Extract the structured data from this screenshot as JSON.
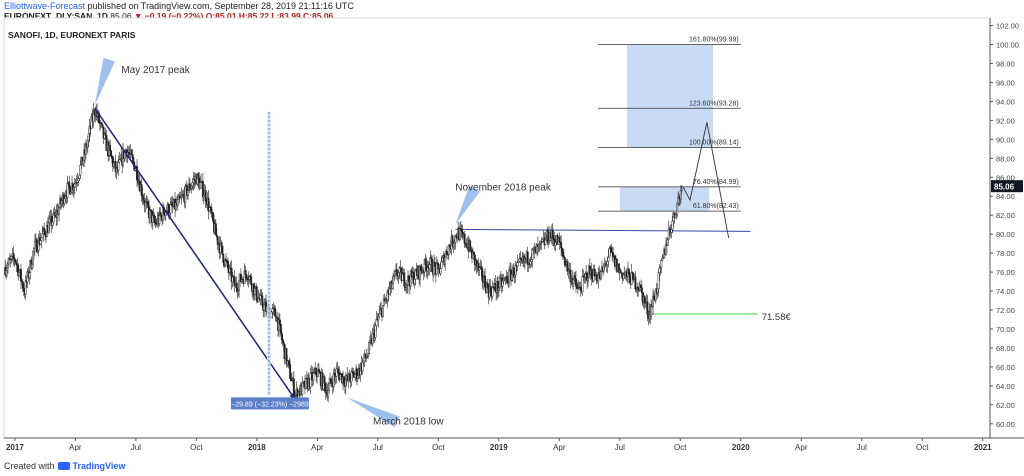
{
  "header": {
    "author": "Elliottwave-Forecast",
    "published": "published on TradingView.com, September 28, 2019 21:11:16 UTC",
    "symbol": "EURONEXT_DLY:SAN, 1D",
    "last": "85.06",
    "change": "▼ −0.19 (−0.22%)",
    "ohlc": "O:85.01 H:85.22 L:83.99 C:85.06"
  },
  "chart_data": {
    "type": "candlestick",
    "title": "SANOFI, 1D, EURONEXT PARIS",
    "x_range": [
      2016.955,
      2021.03
    ],
    "y_range": [
      58.5,
      102.8
    ],
    "price_ticks": [
      60,
      62,
      64,
      66,
      68,
      70,
      72,
      74,
      76,
      78,
      80,
      82,
      84,
      86,
      88,
      90,
      92,
      94,
      96,
      98,
      100,
      102
    ],
    "time_ticks": [
      {
        "x": 2017.0,
        "label": "2017"
      },
      {
        "x": 2017.25,
        "label": "Apr"
      },
      {
        "x": 2017.5,
        "label": "Jul"
      },
      {
        "x": 2017.75,
        "label": "Oct"
      },
      {
        "x": 2018.0,
        "label": "2018"
      },
      {
        "x": 2018.25,
        "label": "Apr"
      },
      {
        "x": 2018.5,
        "label": "Jul"
      },
      {
        "x": 2018.75,
        "label": "Oct"
      },
      {
        "x": 2019.0,
        "label": "2019"
      },
      {
        "x": 2019.25,
        "label": "Apr"
      },
      {
        "x": 2019.5,
        "label": "Jul"
      },
      {
        "x": 2019.75,
        "label": "Oct"
      },
      {
        "x": 2020.0,
        "label": "2020"
      },
      {
        "x": 2020.25,
        "label": "Apr"
      },
      {
        "x": 2020.5,
        "label": "Jul"
      },
      {
        "x": 2020.75,
        "label": "Oct"
      },
      {
        "x": 2021.0,
        "label": "2021"
      }
    ],
    "price_path": [
      [
        2016.96,
        76.5
      ],
      [
        2017.0,
        77.5
      ],
      [
        2017.04,
        74.0
      ],
      [
        2017.08,
        78.5
      ],
      [
        2017.13,
        80.5
      ],
      [
        2017.17,
        82.0
      ],
      [
        2017.21,
        84.5
      ],
      [
        2017.25,
        85.5
      ],
      [
        2017.29,
        88.5
      ],
      [
        2017.33,
        93.3
      ],
      [
        2017.37,
        90.0
      ],
      [
        2017.42,
        86.5
      ],
      [
        2017.46,
        89.0
      ],
      [
        2017.5,
        87.0
      ],
      [
        2017.54,
        83.0
      ],
      [
        2017.58,
        81.0
      ],
      [
        2017.62,
        82.5
      ],
      [
        2017.67,
        83.0
      ],
      [
        2017.71,
        84.5
      ],
      [
        2017.75,
        86.0
      ],
      [
        2017.79,
        84.0
      ],
      [
        2017.83,
        80.0
      ],
      [
        2017.87,
        77.0
      ],
      [
        2017.91,
        74.5
      ],
      [
        2017.96,
        76.0
      ],
      [
        2018.0,
        73.5
      ],
      [
        2018.04,
        72.0
      ],
      [
        2018.08,
        71.5
      ],
      [
        2018.12,
        67.0
      ],
      [
        2018.16,
        63.0
      ],
      [
        2018.2,
        64.0
      ],
      [
        2018.25,
        65.5
      ],
      [
        2018.29,
        63.5
      ],
      [
        2018.33,
        65.5
      ],
      [
        2018.37,
        64.5
      ],
      [
        2018.42,
        65.5
      ],
      [
        2018.46,
        67.5
      ],
      [
        2018.5,
        71.0
      ],
      [
        2018.54,
        73.5
      ],
      [
        2018.58,
        76.0
      ],
      [
        2018.62,
        75.0
      ],
      [
        2018.67,
        76.0
      ],
      [
        2018.71,
        77.0
      ],
      [
        2018.75,
        76.0
      ],
      [
        2018.79,
        78.5
      ],
      [
        2018.83,
        80.2
      ],
      [
        2018.87,
        79.0
      ],
      [
        2018.92,
        76.0
      ],
      [
        2018.96,
        74.0
      ],
      [
        2019.0,
        74.5
      ],
      [
        2019.04,
        75.5
      ],
      [
        2019.08,
        76.5
      ],
      [
        2019.12,
        77.5
      ],
      [
        2019.17,
        78.5
      ],
      [
        2019.21,
        80.0
      ],
      [
        2019.25,
        79.0
      ],
      [
        2019.29,
        76.0
      ],
      [
        2019.33,
        74.0
      ],
      [
        2019.37,
        76.0
      ],
      [
        2019.42,
        75.5
      ],
      [
        2019.46,
        78.0
      ],
      [
        2019.5,
        76.0
      ],
      [
        2019.54,
        75.5
      ],
      [
        2019.58,
        74.5
      ],
      [
        2019.62,
        71.6
      ],
      [
        2019.65,
        74.0
      ],
      [
        2019.68,
        77.5
      ],
      [
        2019.7,
        80.0
      ],
      [
        2019.72,
        81.5
      ],
      [
        2019.74,
        83.5
      ],
      [
        2019.76,
        85.06
      ]
    ],
    "projection": [
      [
        2019.76,
        85.06
      ],
      [
        2019.79,
        83.6
      ],
      [
        2019.86,
        91.8
      ],
      [
        2019.95,
        79.6
      ]
    ],
    "fibonacci": [
      {
        "label": "161.80%(99.99)",
        "price": 99.99
      },
      {
        "label": "123.60%(93.28)",
        "price": 93.28
      },
      {
        "label": "100.00%(89.14)",
        "price": 89.14
      },
      {
        "label": "76.40%(84.99)",
        "price": 84.99
      },
      {
        "label": "61.80%(82.43)",
        "price": 82.43
      }
    ],
    "fib_x_range": [
      2019.41,
      2020.0
    ],
    "zones": [
      {
        "x0": 2019.53,
        "x1": 2019.885,
        "y0": 89.14,
        "y1": 99.99
      },
      {
        "x0": 2019.5,
        "x1": 2019.87,
        "y0": 82.43,
        "y1": 84.99
      }
    ],
    "resistance_line": {
      "x0": 2018.82,
      "x1": 2020.04,
      "y0": 80.5,
      "y1": 80.3
    },
    "support_line": {
      "x0": 2019.62,
      "x1": 2020.07,
      "price": 71.58,
      "label": "71.58€"
    },
    "trend_line": {
      "x0": 2017.33,
      "y0": 93.3,
      "x1": 2018.16,
      "y1": 62.5
    },
    "measure": {
      "x": 2018.05,
      "y0": 92.9,
      "y1": 63.0,
      "label": "−29.89 (−32.23%) −2989"
    },
    "current_price": "85.06",
    "annotations": [
      {
        "text": "May 2017 peak",
        "x": 2017.44,
        "y": 97.0
      },
      {
        "text": "November 2018 peak",
        "x": 2018.82,
        "y": 84.6
      },
      {
        "text": "March 2018 low",
        "x": 2018.48,
        "y": 59.9
      }
    ],
    "arrows": [
      {
        "tip": [
          2017.33,
          93.6
        ],
        "base": [
          2017.39,
          98.4
        ]
      },
      {
        "tip": [
          2018.82,
          81.0
        ],
        "base": [
          2018.9,
          84.8
        ]
      },
      {
        "tip": [
          2018.37,
          62.8
        ],
        "base": [
          2018.58,
          60.2
        ]
      }
    ],
    "colors": {
      "trend": "#1a237e",
      "level": "#3949ab",
      "zone": "#b6cdf0",
      "support": "#80e080",
      "candle": "#222222",
      "arrow": "#9fc0ee",
      "price_tag": "#131722",
      "measure": "#5b7fc8"
    }
  },
  "footer": {
    "created_with": "Created with",
    "brand": "TradingView"
  }
}
